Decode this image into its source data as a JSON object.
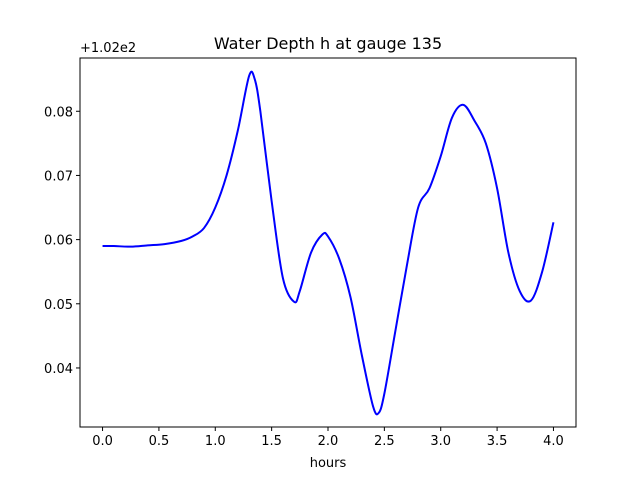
{
  "chart_data": {
    "type": "line",
    "title": "Water Depth h at gauge 135",
    "xlabel": "hours",
    "ylabel": "",
    "y_offset_label": "+1.02e2",
    "xlim": [
      -0.2,
      4.2
    ],
    "ylim": [
      0.0308,
      0.0883
    ],
    "x_ticks": [
      0.0,
      0.5,
      1.0,
      1.5,
      2.0,
      2.5,
      3.0,
      3.5,
      4.0
    ],
    "x_tick_labels": [
      "0.0",
      "0.5",
      "1.0",
      "1.5",
      "2.0",
      "2.5",
      "3.0",
      "3.5",
      "4.0"
    ],
    "y_ticks": [
      0.04,
      0.05,
      0.06,
      0.07,
      0.08
    ],
    "y_tick_labels": [
      "0.04",
      "0.05",
      "0.06",
      "0.07",
      "0.08"
    ],
    "grid": false,
    "line_color": "#0000ff",
    "series": [
      {
        "x": [
          0.0,
          0.1,
          0.25,
          0.4,
          0.55,
          0.7,
          0.8,
          0.9,
          1.0,
          1.1,
          1.2,
          1.3,
          1.35,
          1.4,
          1.5,
          1.6,
          1.7,
          1.75,
          1.85,
          1.95,
          2.0,
          2.1,
          2.2,
          2.3,
          2.4,
          2.45,
          2.5,
          2.6,
          2.7,
          2.8,
          2.9,
          3.0,
          3.1,
          3.2,
          3.3,
          3.4,
          3.5,
          3.6,
          3.7,
          3.8,
          3.9,
          4.0
        ],
        "y": [
          0.059,
          0.059,
          0.0589,
          0.0591,
          0.0593,
          0.0598,
          0.0605,
          0.0618,
          0.065,
          0.07,
          0.077,
          0.0855,
          0.085,
          0.08,
          0.066,
          0.054,
          0.0503,
          0.052,
          0.058,
          0.0608,
          0.0605,
          0.057,
          0.051,
          0.042,
          0.034,
          0.033,
          0.036,
          0.046,
          0.056,
          0.065,
          0.068,
          0.073,
          0.079,
          0.081,
          0.0785,
          0.075,
          0.068,
          0.058,
          0.052,
          0.0505,
          0.055,
          0.0627
        ]
      }
    ]
  }
}
